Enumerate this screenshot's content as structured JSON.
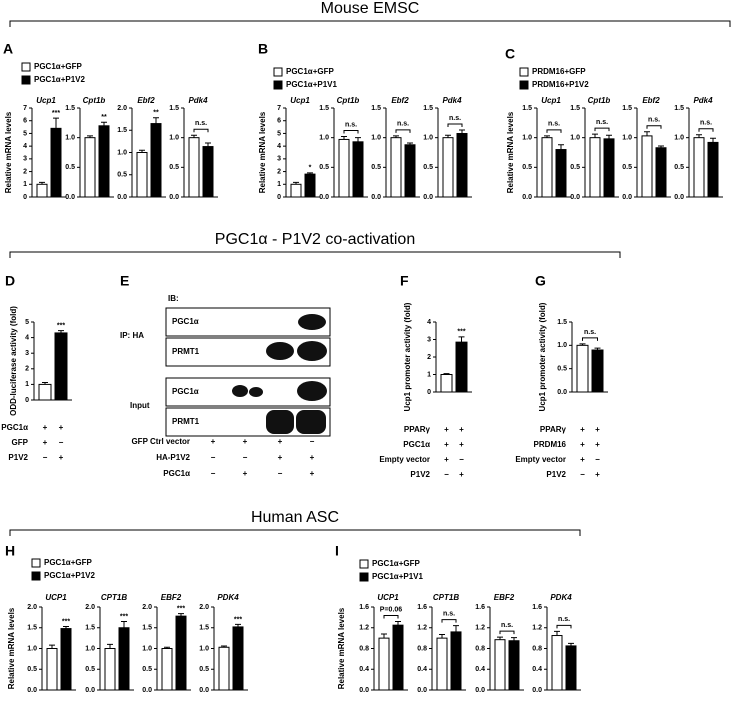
{
  "section_titles": [
    "Mouse EMSC",
    "PGC1α - P1V2 co-activation",
    "Human ASC"
  ],
  "gene_panels": [
    {
      "letter": "A",
      "ylabel": "Relative mRNA levels",
      "legend": [
        {
          "name": "PGC1α+GFP",
          "color": "#ffffff"
        },
        {
          "name": "PGC1α+P1V2",
          "color": "#000000"
        }
      ],
      "charts": [
        {
          "gene": "Ucp1",
          "ylim": [
            0,
            7
          ],
          "yticks": [
            0,
            1,
            2,
            3,
            4,
            5,
            6,
            7
          ],
          "values": [
            1.0,
            5.4
          ],
          "errors": [
            0.15,
            0.8
          ],
          "sig": "***"
        },
        {
          "gene": "Cpt1b",
          "ylim": [
            0,
            1.5
          ],
          "yticks": [
            {
              "value": 0,
              "label": "0.0"
            },
            0.5,
            {
              "value": 1,
              "label": "1.0"
            },
            1.5
          ],
          "values": [
            1.0,
            1.2
          ],
          "errors": [
            0.03,
            0.06
          ],
          "sig": "**"
        },
        {
          "gene": "Ebf2",
          "ylim": [
            0,
            2
          ],
          "yticks": [
            {
              "value": 0,
              "label": "0.0"
            },
            0.5,
            {
              "value": 1,
              "label": "1.0"
            },
            1.5,
            {
              "value": 2,
              "label": "2.0"
            }
          ],
          "values": [
            1.0,
            1.65
          ],
          "errors": [
            0.05,
            0.13
          ],
          "sig": "**"
        },
        {
          "gene": "Pdk4",
          "ylim": [
            0,
            1.5
          ],
          "yticks": [
            {
              "value": 0,
              "label": "0.0"
            },
            0.5,
            {
              "value": 1,
              "label": "1.0"
            },
            1.5
          ],
          "values": [
            1.0,
            0.85
          ],
          "errors": [
            0.04,
            0.06
          ],
          "sig": "n.s."
        }
      ]
    },
    {
      "letter": "B",
      "ylabel": "Relative mRNA levels",
      "legend": [
        {
          "name": "PGC1α+GFP",
          "color": "#ffffff"
        },
        {
          "name": "PGC1α+P1V1",
          "color": "#000000"
        }
      ],
      "charts": [
        {
          "gene": "Ucp1",
          "ylim": [
            0,
            7
          ],
          "yticks": [
            0,
            1,
            2,
            3,
            4,
            5,
            6,
            7
          ],
          "values": [
            1.0,
            1.8
          ],
          "errors": [
            0.15,
            0.1
          ],
          "sig": "*"
        },
        {
          "gene": "Cpt1b",
          "ylim": [
            0,
            1.5
          ],
          "yticks": [
            {
              "value": 0,
              "label": "0.0"
            },
            0.5,
            {
              "value": 1,
              "label": "1.0"
            },
            1.5
          ],
          "values": [
            0.97,
            0.93
          ],
          "errors": [
            0.05,
            0.07
          ],
          "sig": "n.s."
        },
        {
          "gene": "Ebf2",
          "ylim": [
            0,
            1.5
          ],
          "yticks": [
            {
              "value": 0,
              "label": "0.0"
            },
            0.5,
            {
              "value": 1,
              "label": "1.0"
            },
            1.5
          ],
          "values": [
            1.0,
            0.88
          ],
          "errors": [
            0.03,
            0.03
          ],
          "sig": "n.s."
        },
        {
          "gene": "Pdk4",
          "ylim": [
            0,
            1.5
          ],
          "yticks": [
            {
              "value": 0,
              "label": "0.0"
            },
            0.5,
            {
              "value": 1,
              "label": "1.0"
            },
            1.5
          ],
          "values": [
            1.0,
            1.07
          ],
          "errors": [
            0.04,
            0.06
          ],
          "sig": "n.s."
        }
      ]
    },
    {
      "letter": "C",
      "ylabel": "Relative mRNA levels",
      "legend": [
        {
          "name": "PRDM16+GFP",
          "color": "#ffffff"
        },
        {
          "name": "PRDM16+P1V2",
          "color": "#000000"
        }
      ],
      "charts": [
        {
          "gene": "Ucp1",
          "ylim": [
            0,
            1.5
          ],
          "yticks": [
            {
              "value": 0,
              "label": "0.0"
            },
            0.5,
            {
              "value": 1,
              "label": "1.0"
            },
            1.5
          ],
          "values": [
            1.0,
            0.8
          ],
          "errors": [
            0.03,
            0.08
          ],
          "sig": "n.s."
        },
        {
          "gene": "Cpt1b",
          "ylim": [
            0,
            1.5
          ],
          "yticks": [
            {
              "value": 0,
              "label": "0.0"
            },
            0.5,
            {
              "value": 1,
              "label": "1.0"
            },
            1.5
          ],
          "values": [
            1.0,
            0.98
          ],
          "errors": [
            0.06,
            0.06
          ],
          "sig": "n.s."
        },
        {
          "gene": "Ebf2",
          "ylim": [
            0,
            1.5
          ],
          "yticks": [
            {
              "value": 0,
              "label": "0.0"
            },
            0.5,
            {
              "value": 1,
              "label": "1.0"
            },
            1.5
          ],
          "values": [
            1.03,
            0.83
          ],
          "errors": [
            0.07,
            0.03
          ],
          "sig": "n.s."
        },
        {
          "gene": "Pdk4",
          "ylim": [
            0,
            1.5
          ],
          "yticks": [
            {
              "value": 0,
              "label": "0.0"
            },
            0.5,
            {
              "value": 1,
              "label": "1.0"
            },
            1.5
          ],
          "values": [
            1.0,
            0.92
          ],
          "errors": [
            0.05,
            0.07
          ],
          "sig": "n.s."
        }
      ]
    },
    {
      "letter": "H",
      "ylabel": "Relative mRNA levels",
      "legend": [
        {
          "name": "PGC1α+GFP",
          "color": "#ffffff"
        },
        {
          "name": "PGC1α+P1V2",
          "color": "#000000"
        }
      ],
      "charts": [
        {
          "gene": "UCP1",
          "ylim": [
            0,
            2
          ],
          "yticks": [
            {
              "value": 0,
              "label": "0.0"
            },
            0.5,
            {
              "value": 1,
              "label": "1.0"
            },
            1.5,
            {
              "value": 2,
              "label": "2.0"
            }
          ],
          "values": [
            1.0,
            1.48
          ],
          "errors": [
            0.08,
            0.05
          ],
          "sig": "***"
        },
        {
          "gene": "CPT1B",
          "ylim": [
            0,
            2
          ],
          "yticks": [
            {
              "value": 0,
              "label": "0.0"
            },
            0.5,
            {
              "value": 1,
              "label": "1.0"
            },
            1.5,
            {
              "value": 2,
              "label": "2.0"
            }
          ],
          "values": [
            1.0,
            1.5
          ],
          "errors": [
            0.1,
            0.15
          ],
          "sig": "***"
        },
        {
          "gene": "EBF2",
          "ylim": [
            0,
            2
          ],
          "yticks": [
            {
              "value": 0,
              "label": "0.0"
            },
            0.5,
            {
              "value": 1,
              "label": "1.0"
            },
            1.5,
            {
              "value": 2,
              "label": "2.0"
            }
          ],
          "values": [
            1.0,
            1.78
          ],
          "errors": [
            0.03,
            0.06
          ],
          "sig": "***"
        },
        {
          "gene": "PDK4",
          "ylim": [
            0,
            2
          ],
          "yticks": [
            {
              "value": 0,
              "label": "0.0"
            },
            0.5,
            {
              "value": 1,
              "label": "1.0"
            },
            1.5,
            {
              "value": 2,
              "label": "2.0"
            }
          ],
          "values": [
            1.03,
            1.52
          ],
          "errors": [
            0.03,
            0.06
          ],
          "sig": "***"
        }
      ]
    },
    {
      "letter": "I",
      "ylabel": "Relative mRNA levels",
      "legend": [
        {
          "name": "PGC1α+GFP",
          "color": "#ffffff"
        },
        {
          "name": "PGC1α+P1V1",
          "color": "#000000"
        }
      ],
      "charts": [
        {
          "gene": "UCP1",
          "ylim": [
            0,
            1.6
          ],
          "yticks": [
            {
              "value": 0,
              "label": "0.0"
            },
            0.4,
            0.8,
            1.2,
            1.6
          ],
          "values": [
            1.0,
            1.25
          ],
          "errors": [
            0.08,
            0.07
          ],
          "sig": "P=0.06"
        },
        {
          "gene": "CPT1B",
          "ylim": [
            0,
            1.6
          ],
          "yticks": [
            {
              "value": 0,
              "label": "0.0"
            },
            0.4,
            0.8,
            1.2,
            1.6
          ],
          "values": [
            1.0,
            1.12
          ],
          "errors": [
            0.07,
            0.12
          ],
          "sig": "n.s."
        },
        {
          "gene": "EBF2",
          "ylim": [
            0,
            1.6
          ],
          "yticks": [
            {
              "value": 0,
              "label": "0.0"
            },
            0.4,
            0.8,
            1.2,
            1.6
          ],
          "values": [
            0.97,
            0.95
          ],
          "errors": [
            0.05,
            0.06
          ],
          "sig": "n.s."
        },
        {
          "gene": "PDK4",
          "ylim": [
            0,
            1.6
          ],
          "yticks": [
            {
              "value": 0,
              "label": "0.0"
            },
            0.4,
            0.8,
            1.2,
            1.6
          ],
          "values": [
            1.05,
            0.85
          ],
          "errors": [
            0.08,
            0.05
          ],
          "sig": "n.s."
        }
      ]
    }
  ],
  "assay_panels": [
    {
      "letter": "D",
      "ylabel": "ODD-luciferase activity (fold)",
      "ylim": [
        0,
        5
      ],
      "yticks": [
        0,
        1,
        2,
        3,
        4,
        5
      ],
      "values": [
        1.0,
        4.3
      ],
      "errors": [
        0.12,
        0.15
      ],
      "colors": [
        "#ffffff",
        "#000000"
      ],
      "sig": "***",
      "conditions": [
        {
          "label": "PGC1α",
          "signs": [
            "+",
            "+"
          ]
        },
        {
          "label": "GFP",
          "signs": [
            "+",
            "−"
          ]
        },
        {
          "label": "P1V2",
          "signs": [
            "−",
            "+"
          ]
        }
      ]
    },
    {
      "letter": "F",
      "ylabel": "Ucp1 promoter activity (fold)",
      "ylim": [
        0,
        4
      ],
      "yticks": [
        0,
        1,
        2,
        3,
        4
      ],
      "values": [
        1.0,
        2.85
      ],
      "errors": [
        0.05,
        0.3
      ],
      "colors": [
        "#ffffff",
        "#000000"
      ],
      "sig": "***",
      "conditions": [
        {
          "label": "PPARγ",
          "signs": [
            "+",
            "+"
          ]
        },
        {
          "label": "PGC1α",
          "signs": [
            "+",
            "+"
          ]
        },
        {
          "label": "Empty vector",
          "signs": [
            "+",
            "−"
          ]
        },
        {
          "label": "P1V2",
          "signs": [
            "−",
            "+"
          ]
        }
      ]
    },
    {
      "letter": "G",
      "ylabel": "Ucp1 promoter activity (fold)",
      "ylim": [
        0,
        1.5
      ],
      "yticks": [
        {
          "value": 0,
          "label": "0.0"
        },
        0.5,
        {
          "value": 1,
          "label": "1.0"
        },
        1.5
      ],
      "values": [
        1.0,
        0.9
      ],
      "errors": [
        0.03,
        0.04
      ],
      "colors": [
        "#ffffff",
        "#000000"
      ],
      "sig": "n.s.",
      "conditions": [
        {
          "label": "PPARγ",
          "signs": [
            "+",
            "+"
          ]
        },
        {
          "label": "PRDM16",
          "signs": [
            "+",
            "+"
          ]
        },
        {
          "label": "Empty vector",
          "signs": [
            "+",
            "−"
          ]
        },
        {
          "label": "P1V2",
          "signs": [
            "−",
            "+"
          ]
        }
      ]
    }
  ],
  "blot": {
    "letter": "E",
    "ib_label": "IB:",
    "groups": [
      {
        "label": "IP: HA",
        "rows": [
          "PGC1α",
          "PRMT1"
        ]
      },
      {
        "label": "Input",
        "rows": [
          "PGC1α",
          "PRMT1"
        ]
      }
    ],
    "conditions": [
      {
        "label": "GFP Ctrl vector",
        "signs": [
          "+",
          "+",
          "+",
          "−"
        ]
      },
      {
        "label": "HA-P1V2",
        "signs": [
          "−",
          "−",
          "+",
          "+"
        ]
      },
      {
        "label": "PGC1α",
        "signs": [
          "−",
          "+",
          "−",
          "+"
        ]
      }
    ]
  }
}
